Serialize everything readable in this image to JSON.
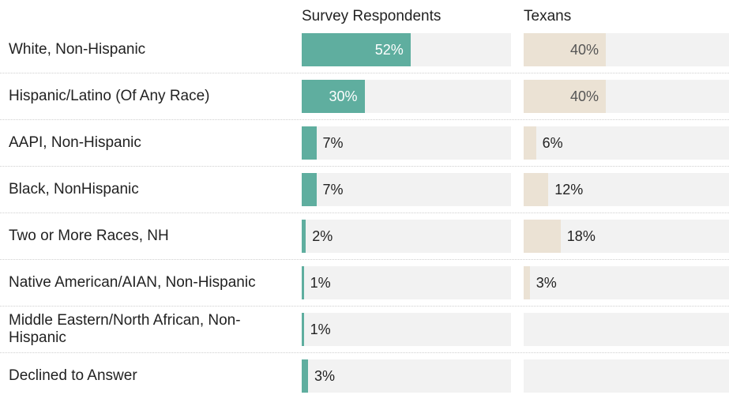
{
  "chart_data": {
    "type": "bar",
    "categories": [
      "White, Non-Hispanic",
      "Hispanic/Latino (Of Any Race)",
      "AAPI, Non-Hispanic",
      "Black, NonHispanic",
      "Two or More Races, NH",
      "Native American/AIAN, Non-Hispanic",
      "Middle Eastern/North African, Non-Hispanic",
      "Declined to Answer"
    ],
    "xlim": [
      0,
      100
    ],
    "series": [
      {
        "name": "Survey Respondents",
        "color": "#5fae9f",
        "label_inside_color": "#ffffff",
        "values": [
          52,
          30,
          7,
          7,
          2,
          1,
          1,
          3
        ],
        "value_labels": [
          "52%",
          "30%",
          "7%",
          "7%",
          "2%",
          "1%",
          "1%",
          "3%"
        ]
      },
      {
        "name": "Texans",
        "color": "#ebe2d4",
        "label_inside_color": "#555555",
        "values": [
          40,
          40,
          6,
          12,
          18,
          3,
          null,
          null
        ],
        "value_labels": [
          "40%",
          "40%",
          "6%",
          "12%",
          "18%",
          "3%",
          null,
          null
        ]
      }
    ]
  }
}
